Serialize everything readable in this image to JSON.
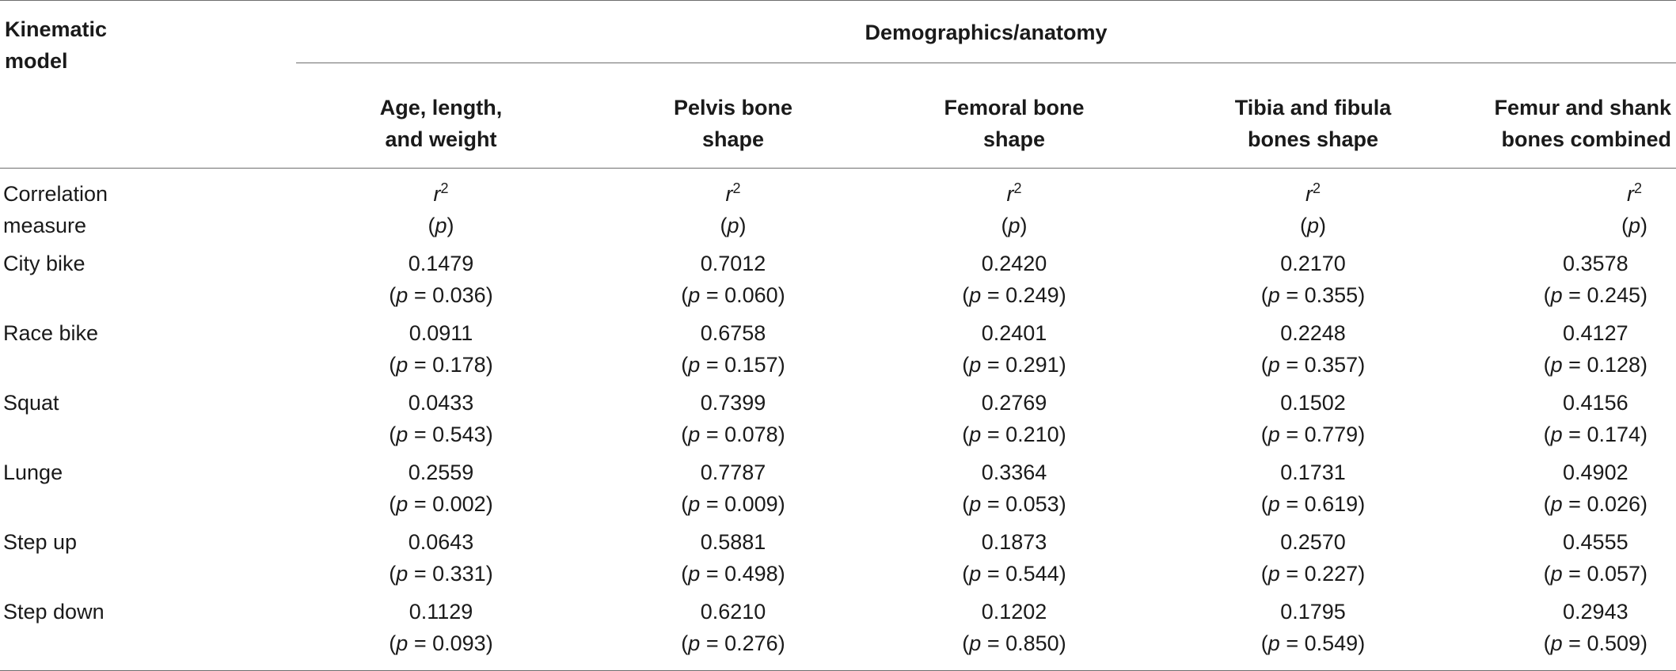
{
  "header": {
    "kinematic_model": [
      "Kinematic",
      "model"
    ],
    "group": "Demographics/anatomy",
    "columns": [
      [
        "Age, length,",
        "and weight"
      ],
      [
        "Pelvis bone",
        "shape"
      ],
      [
        "Femoral bone",
        "shape"
      ],
      [
        "Tibia and fibula",
        "bones shape"
      ],
      [
        "Femur and shank",
        "bones combined"
      ]
    ]
  },
  "measure": {
    "label": [
      "Correlation",
      "measure"
    ],
    "r_letter": "r",
    "r_exp": "2",
    "p_open": "(",
    "p_letter": "p",
    "p_close": ")"
  },
  "p_prefix": "p",
  "p_eq": " = ",
  "rows": [
    {
      "label": "City bike",
      "cells": [
        {
          "r2": "0.1479",
          "p": "0.036"
        },
        {
          "r2": "0.7012",
          "p": "0.060"
        },
        {
          "r2": "0.2420",
          "p": "0.249"
        },
        {
          "r2": "0.2170",
          "p": "0.355"
        },
        {
          "r2": "0.3578",
          "p": "0.245"
        }
      ]
    },
    {
      "label": "Race bike",
      "cells": [
        {
          "r2": "0.0911",
          "p": "0.178"
        },
        {
          "r2": "0.6758",
          "p": "0.157"
        },
        {
          "r2": "0.2401",
          "p": "0.291"
        },
        {
          "r2": "0.2248",
          "p": "0.357"
        },
        {
          "r2": "0.4127",
          "p": "0.128"
        }
      ]
    },
    {
      "label": "Squat",
      "cells": [
        {
          "r2": "0.0433",
          "p": "0.543"
        },
        {
          "r2": "0.7399",
          "p": "0.078"
        },
        {
          "r2": "0.2769",
          "p": "0.210"
        },
        {
          "r2": "0.1502",
          "p": "0.779"
        },
        {
          "r2": "0.4156",
          "p": "0.174"
        }
      ]
    },
    {
      "label": "Lunge",
      "cells": [
        {
          "r2": "0.2559",
          "p": "0.002"
        },
        {
          "r2": "0.7787",
          "p": "0.009"
        },
        {
          "r2": "0.3364",
          "p": "0.053"
        },
        {
          "r2": "0.1731",
          "p": "0.619"
        },
        {
          "r2": "0.4902",
          "p": "0.026"
        }
      ]
    },
    {
      "label": "Step up",
      "cells": [
        {
          "r2": "0.0643",
          "p": "0.331"
        },
        {
          "r2": "0.5881",
          "p": "0.498"
        },
        {
          "r2": "0.1873",
          "p": "0.544"
        },
        {
          "r2": "0.2570",
          "p": "0.227"
        },
        {
          "r2": "0.4555",
          "p": "0.057"
        }
      ]
    },
    {
      "label": "Step down",
      "cells": [
        {
          "r2": "0.1129",
          "p": "0.093"
        },
        {
          "r2": "0.6210",
          "p": "0.276"
        },
        {
          "r2": "0.1202",
          "p": "0.850"
        },
        {
          "r2": "0.1795",
          "p": "0.549"
        },
        {
          "r2": "0.2943",
          "p": "0.509"
        }
      ]
    }
  ]
}
